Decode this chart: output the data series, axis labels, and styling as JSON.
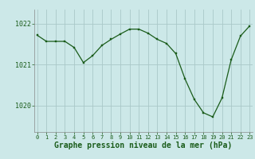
{
  "x": [
    0,
    1,
    2,
    3,
    4,
    5,
    6,
    7,
    8,
    9,
    10,
    11,
    12,
    13,
    14,
    15,
    16,
    17,
    18,
    19,
    20,
    21,
    22,
    23
  ],
  "y": [
    1021.72,
    1021.57,
    1021.57,
    1021.57,
    1021.42,
    1021.05,
    1021.22,
    1021.47,
    1021.62,
    1021.75,
    1021.87,
    1021.87,
    1021.77,
    1021.62,
    1021.52,
    1021.27,
    1020.65,
    1020.15,
    1019.82,
    1019.72,
    1020.18,
    1021.12,
    1021.7,
    1021.95
  ],
  "line_color": "#1a5c1a",
  "marker_color": "#1a5c1a",
  "bg_color": "#cce8e8",
  "grid_color": "#aac8c8",
  "xlabel": "Graphe pression niveau de la mer (hPa)",
  "ylim_min": 1019.35,
  "ylim_max": 1022.35,
  "xlim_min": -0.3,
  "xlim_max": 23.3,
  "yticks": [
    1020,
    1021,
    1022
  ],
  "xlabel_fontsize": 7,
  "xtick_fontsize": 5,
  "ytick_fontsize": 6
}
